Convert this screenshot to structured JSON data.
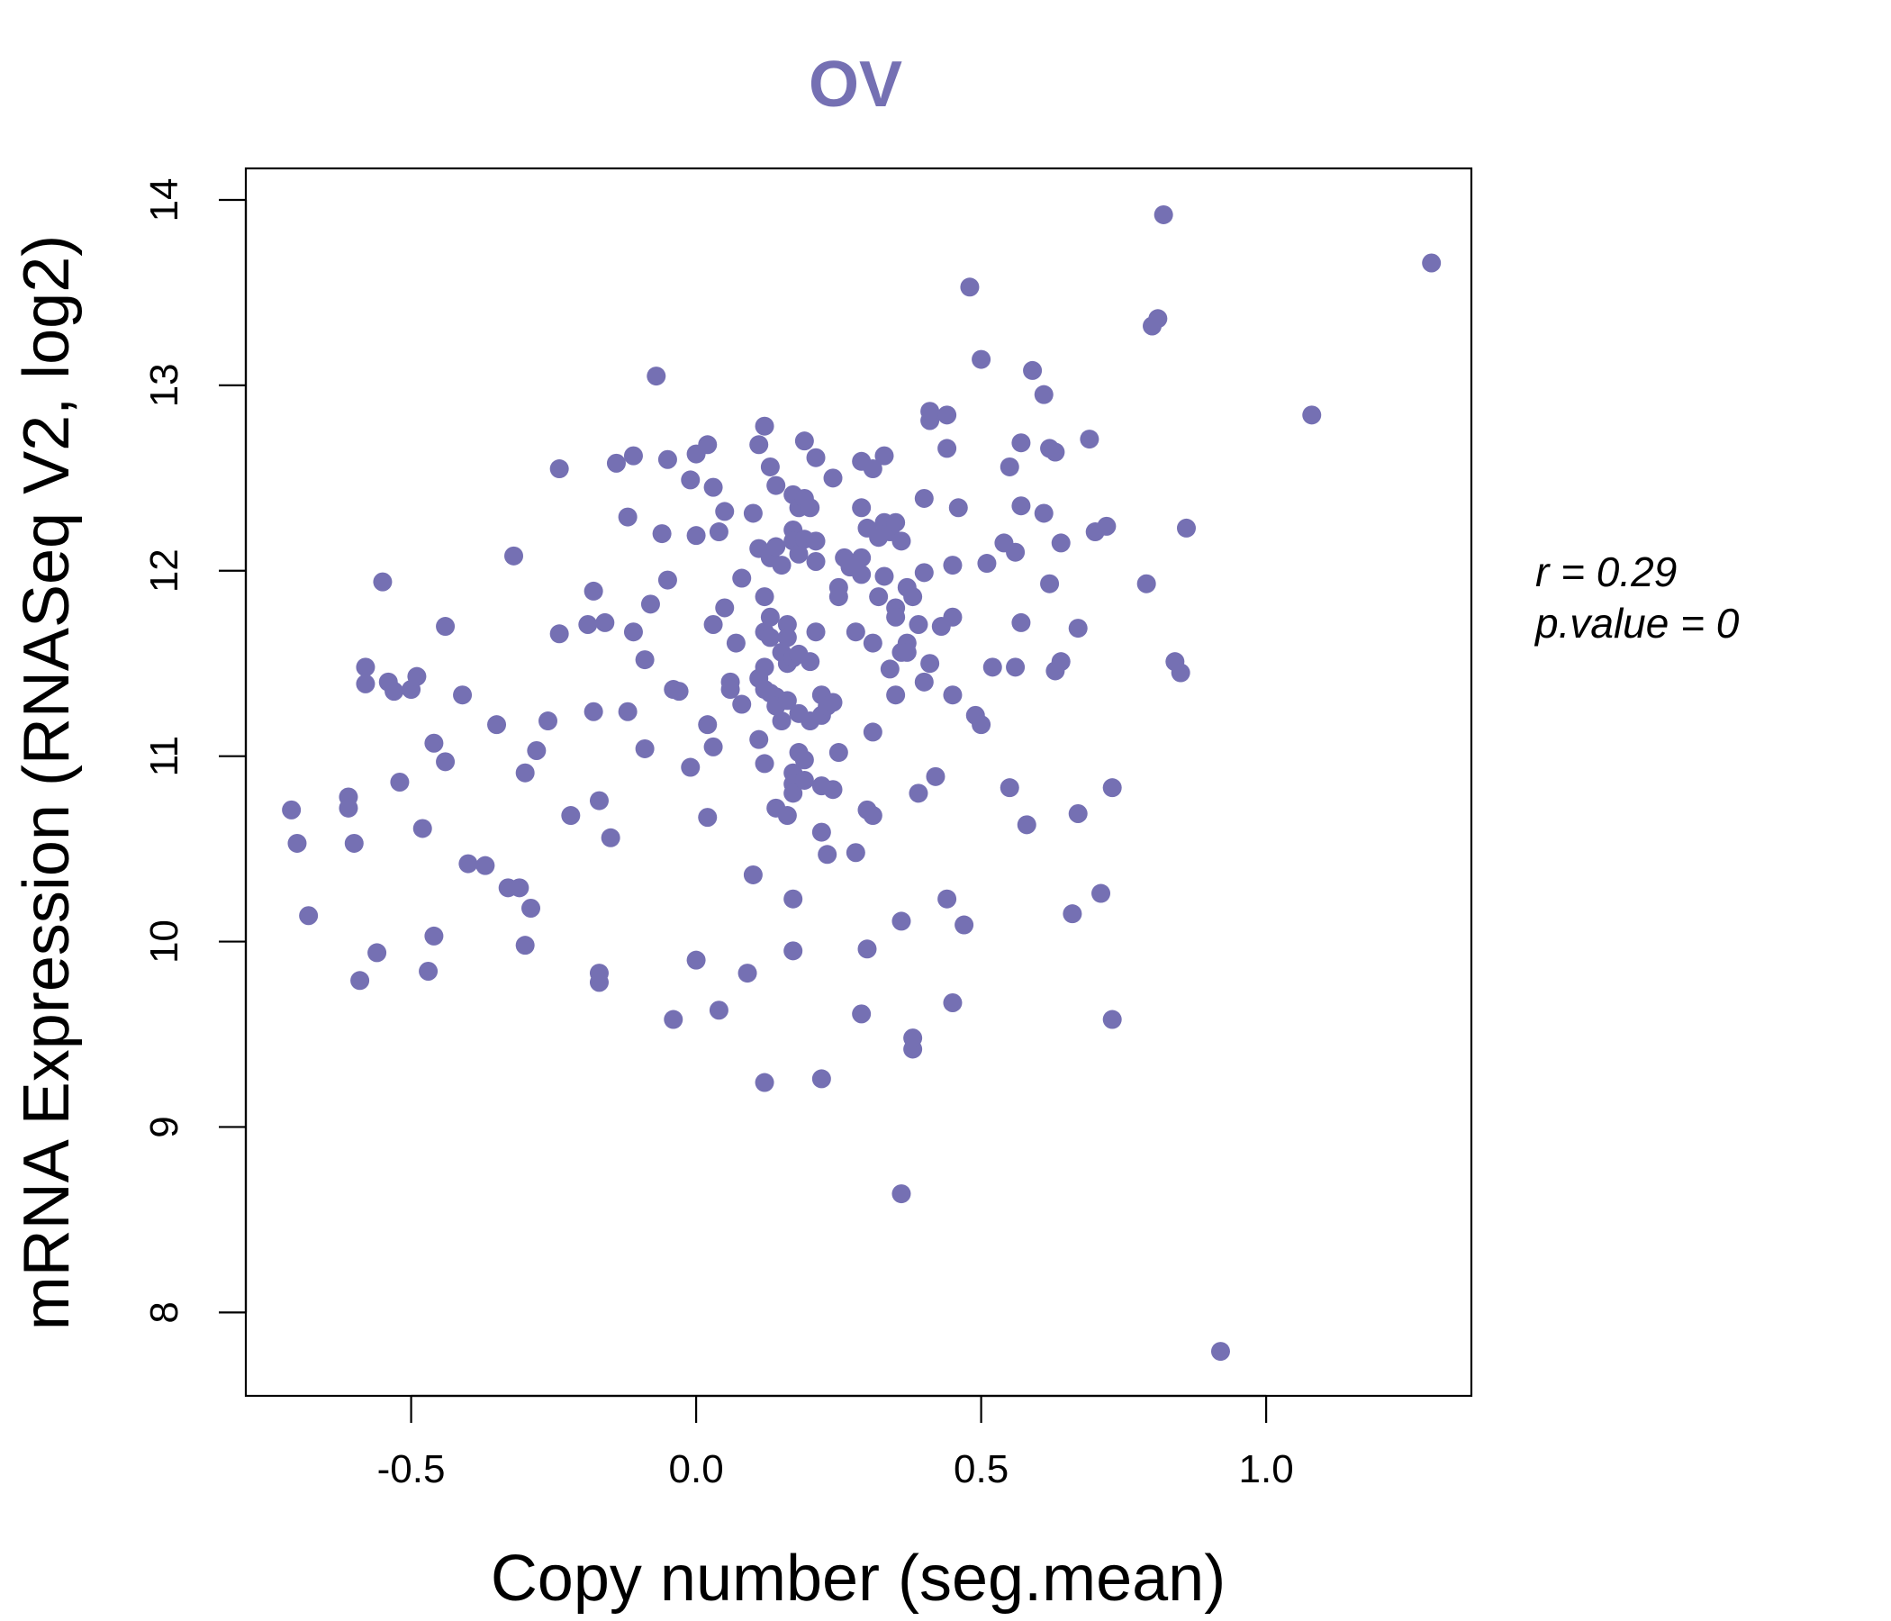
{
  "chart_data": {
    "type": "scatter",
    "title": "OV",
    "xlabel": "Copy number (seg.mean)",
    "ylabel": "mRNA Expression (RNASeq V2, log2)",
    "xlim": [
      -0.79,
      1.36
    ],
    "ylim": [
      7.55,
      14.17
    ],
    "xticks": [
      -0.5,
      0.0,
      0.5,
      1.0
    ],
    "xtick_labels": [
      "-0.5",
      "0.0",
      "0.5",
      "1.0"
    ],
    "yticks": [
      8,
      9,
      10,
      11,
      12,
      13,
      14
    ],
    "ytick_labels": [
      "8",
      "9",
      "10",
      "11",
      "12",
      "13",
      "14"
    ],
    "grid": false,
    "color": "#7570b3",
    "stats": {
      "r": "r = 0.29",
      "p": "p.value = 0"
    },
    "series": [
      {
        "points": [
          [
            -0.71,
            10.71
          ],
          [
            -0.7,
            10.53
          ],
          [
            -0.68,
            10.14
          ],
          [
            -0.61,
            10.78
          ],
          [
            -0.61,
            10.72
          ],
          [
            -0.6,
            10.53
          ],
          [
            -0.59,
            9.79
          ],
          [
            -0.58,
            11.48
          ],
          [
            -0.58,
            11.39
          ],
          [
            -0.56,
            9.94
          ],
          [
            -0.55,
            11.94
          ],
          [
            -0.54,
            11.4
          ],
          [
            -0.53,
            11.35
          ],
          [
            -0.52,
            10.86
          ],
          [
            -0.5,
            11.36
          ],
          [
            -0.49,
            11.43
          ],
          [
            -0.48,
            10.61
          ],
          [
            -0.47,
            9.84
          ],
          [
            -0.46,
            10.03
          ],
          [
            -0.46,
            11.07
          ],
          [
            -0.44,
            10.97
          ],
          [
            -0.44,
            11.7
          ],
          [
            -0.41,
            11.33
          ],
          [
            -0.4,
            10.42
          ],
          [
            -0.37,
            10.41
          ],
          [
            -0.35,
            11.17
          ],
          [
            -0.33,
            10.29
          ],
          [
            -0.32,
            12.08
          ],
          [
            -0.31,
            10.29
          ],
          [
            -0.3,
            10.91
          ],
          [
            -0.3,
            9.98
          ],
          [
            -0.29,
            10.18
          ],
          [
            -0.28,
            11.03
          ],
          [
            -0.26,
            11.19
          ],
          [
            -0.24,
            11.66
          ],
          [
            -0.24,
            12.55
          ],
          [
            -0.22,
            10.68
          ],
          [
            -0.19,
            11.71
          ],
          [
            -0.18,
            11.89
          ],
          [
            -0.18,
            11.24
          ],
          [
            -0.17,
            10.76
          ],
          [
            -0.17,
            9.83
          ],
          [
            -0.17,
            9.78
          ],
          [
            -0.16,
            11.72
          ],
          [
            -0.15,
            10.56
          ],
          [
            -0.14,
            12.58
          ],
          [
            -0.12,
            12.29
          ],
          [
            -0.12,
            11.24
          ],
          [
            -0.11,
            11.67
          ],
          [
            -0.11,
            12.62
          ],
          [
            -0.09,
            11.52
          ],
          [
            -0.09,
            11.04
          ],
          [
            -0.08,
            11.82
          ],
          [
            -0.07,
            13.05
          ],
          [
            -0.06,
            12.2
          ],
          [
            -0.05,
            11.95
          ],
          [
            -0.05,
            12.6
          ],
          [
            -0.04,
            11.36
          ],
          [
            -0.04,
            9.58
          ],
          [
            -0.03,
            11.35
          ],
          [
            -0.01,
            12.49
          ],
          [
            -0.01,
            10.94
          ],
          [
            0.0,
            12.19
          ],
          [
            0.0,
            12.63
          ],
          [
            0.0,
            9.9
          ],
          [
            0.02,
            11.17
          ],
          [
            0.02,
            12.68
          ],
          [
            0.02,
            10.67
          ],
          [
            0.03,
            11.71
          ],
          [
            0.03,
            12.45
          ],
          [
            0.03,
            11.05
          ],
          [
            0.04,
            12.21
          ],
          [
            0.04,
            9.63
          ],
          [
            0.05,
            12.32
          ],
          [
            0.05,
            11.8
          ],
          [
            0.06,
            11.4
          ],
          [
            0.06,
            11.36
          ],
          [
            0.07,
            11.61
          ],
          [
            0.08,
            11.96
          ],
          [
            0.08,
            11.28
          ],
          [
            0.09,
            9.83
          ],
          [
            0.1,
            12.31
          ],
          [
            0.1,
            10.36
          ],
          [
            0.11,
            11.42
          ],
          [
            0.11,
            12.12
          ],
          [
            0.11,
            12.68
          ],
          [
            0.11,
            11.09
          ],
          [
            0.12,
            11.86
          ],
          [
            0.12,
            11.67
          ],
          [
            0.12,
            11.48
          ],
          [
            0.12,
            11.36
          ],
          [
            0.12,
            10.96
          ],
          [
            0.12,
            12.78
          ],
          [
            0.12,
            9.24
          ],
          [
            0.13,
            12.07
          ],
          [
            0.13,
            12.56
          ],
          [
            0.13,
            11.75
          ],
          [
            0.13,
            11.64
          ],
          [
            0.13,
            11.34
          ],
          [
            0.14,
            12.46
          ],
          [
            0.14,
            12.13
          ],
          [
            0.14,
            11.32
          ],
          [
            0.14,
            11.27
          ],
          [
            0.14,
            10.72
          ],
          [
            0.15,
            12.03
          ],
          [
            0.15,
            11.19
          ],
          [
            0.15,
            11.56
          ],
          [
            0.16,
            11.71
          ],
          [
            0.16,
            11.64
          ],
          [
            0.16,
            11.5
          ],
          [
            0.16,
            11.3
          ],
          [
            0.16,
            10.68
          ],
          [
            0.17,
            12.41
          ],
          [
            0.17,
            12.22
          ],
          [
            0.17,
            12.16
          ],
          [
            0.17,
            11.53
          ],
          [
            0.17,
            10.91
          ],
          [
            0.17,
            10.85
          ],
          [
            0.17,
            10.8
          ],
          [
            0.17,
            10.23
          ],
          [
            0.17,
            9.95
          ],
          [
            0.18,
            12.34
          ],
          [
            0.18,
            12.09
          ],
          [
            0.18,
            11.55
          ],
          [
            0.18,
            11.23
          ],
          [
            0.18,
            11.02
          ],
          [
            0.19,
            12.39
          ],
          [
            0.19,
            12.7
          ],
          [
            0.19,
            12.17
          ],
          [
            0.19,
            10.98
          ],
          [
            0.19,
            10.87
          ],
          [
            0.2,
            12.34
          ],
          [
            0.2,
            11.51
          ],
          [
            0.2,
            11.19
          ],
          [
            0.21,
            12.61
          ],
          [
            0.21,
            12.05
          ],
          [
            0.21,
            12.16
          ],
          [
            0.21,
            11.67
          ],
          [
            0.22,
            11.33
          ],
          [
            0.22,
            11.22
          ],
          [
            0.22,
            10.84
          ],
          [
            0.22,
            10.59
          ],
          [
            0.22,
            9.26
          ],
          [
            0.23,
            11.27
          ],
          [
            0.23,
            10.47
          ],
          [
            0.24,
            12.5
          ],
          [
            0.24,
            11.29
          ],
          [
            0.24,
            10.82
          ],
          [
            0.25,
            11.91
          ],
          [
            0.25,
            11.86
          ],
          [
            0.25,
            11.02
          ],
          [
            0.26,
            12.07
          ],
          [
            0.27,
            12.02
          ],
          [
            0.28,
            11.67
          ],
          [
            0.28,
            10.48
          ],
          [
            0.29,
            12.59
          ],
          [
            0.29,
            12.34
          ],
          [
            0.29,
            12.07
          ],
          [
            0.29,
            11.98
          ],
          [
            0.29,
            9.61
          ],
          [
            0.3,
            12.23
          ],
          [
            0.3,
            9.96
          ],
          [
            0.3,
            10.71
          ],
          [
            0.31,
            11.61
          ],
          [
            0.31,
            11.13
          ],
          [
            0.31,
            10.68
          ],
          [
            0.31,
            12.55
          ],
          [
            0.32,
            12.18
          ],
          [
            0.32,
            11.86
          ],
          [
            0.33,
            12.26
          ],
          [
            0.33,
            12.62
          ],
          [
            0.33,
            11.97
          ],
          [
            0.34,
            12.21
          ],
          [
            0.34,
            11.47
          ],
          [
            0.35,
            12.26
          ],
          [
            0.35,
            11.8
          ],
          [
            0.35,
            11.75
          ],
          [
            0.35,
            11.33
          ],
          [
            0.36,
            12.16
          ],
          [
            0.36,
            11.56
          ],
          [
            0.36,
            10.11
          ],
          [
            0.36,
            8.64
          ],
          [
            0.37,
            11.61
          ],
          [
            0.37,
            11.56
          ],
          [
            0.37,
            11.91
          ],
          [
            0.38,
            11.86
          ],
          [
            0.38,
            9.42
          ],
          [
            0.38,
            9.48
          ],
          [
            0.39,
            11.71
          ],
          [
            0.39,
            10.8
          ],
          [
            0.4,
            11.99
          ],
          [
            0.4,
            12.39
          ],
          [
            0.4,
            11.4
          ],
          [
            0.41,
            12.81
          ],
          [
            0.41,
            12.86
          ],
          [
            0.41,
            11.5
          ],
          [
            0.42,
            10.89
          ],
          [
            0.43,
            11.7
          ],
          [
            0.44,
            12.66
          ],
          [
            0.44,
            12.84
          ],
          [
            0.44,
            10.23
          ],
          [
            0.45,
            12.03
          ],
          [
            0.45,
            11.75
          ],
          [
            0.45,
            11.33
          ],
          [
            0.45,
            9.67
          ],
          [
            0.46,
            12.34
          ],
          [
            0.47,
            10.09
          ],
          [
            0.48,
            13.53
          ],
          [
            0.49,
            11.22
          ],
          [
            0.5,
            11.17
          ],
          [
            0.5,
            13.14
          ],
          [
            0.51,
            12.04
          ],
          [
            0.52,
            11.48
          ],
          [
            0.54,
            12.15
          ],
          [
            0.55,
            12.56
          ],
          [
            0.55,
            10.83
          ],
          [
            0.56,
            11.48
          ],
          [
            0.56,
            12.1
          ],
          [
            0.57,
            12.35
          ],
          [
            0.57,
            12.69
          ],
          [
            0.57,
            11.72
          ],
          [
            0.58,
            10.63
          ],
          [
            0.59,
            13.08
          ],
          [
            0.61,
            12.31
          ],
          [
            0.61,
            12.95
          ],
          [
            0.62,
            11.93
          ],
          [
            0.62,
            12.66
          ],
          [
            0.63,
            12.64
          ],
          [
            0.63,
            11.46
          ],
          [
            0.64,
            12.15
          ],
          [
            0.64,
            11.51
          ],
          [
            0.66,
            10.15
          ],
          [
            0.67,
            11.69
          ],
          [
            0.67,
            10.69
          ],
          [
            0.69,
            12.71
          ],
          [
            0.7,
            12.21
          ],
          [
            0.71,
            10.26
          ],
          [
            0.72,
            12.24
          ],
          [
            0.73,
            10.83
          ],
          [
            0.73,
            9.58
          ],
          [
            0.79,
            11.93
          ],
          [
            0.8,
            13.32
          ],
          [
            0.81,
            13.36
          ],
          [
            0.82,
            13.92
          ],
          [
            0.84,
            11.51
          ],
          [
            0.85,
            11.45
          ],
          [
            0.86,
            12.23
          ],
          [
            0.92,
            7.79
          ],
          [
            1.08,
            12.84
          ],
          [
            1.29,
            13.66
          ]
        ]
      }
    ]
  }
}
